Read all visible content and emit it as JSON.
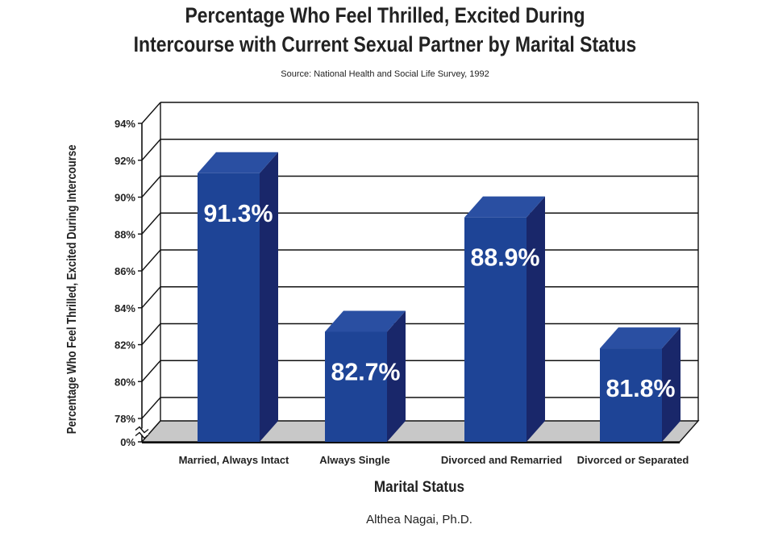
{
  "chart_data": {
    "type": "bar",
    "title_line1": "Percentage Who Feel Thrilled, Excited During",
    "title_line2": "Intercourse with Current Sexual Partner by Marital Status",
    "subtitle": "Source: National Health and Social Life Survey, 1992",
    "ylabel": "Percentage Who Feel Thrilled, Excited During Intercourse",
    "xlabel": "Marital Status",
    "categories": [
      "Married, Always Intact",
      "Always Single",
      "Divorced and Remarried",
      "Divorced or Separated"
    ],
    "values": [
      91.3,
      82.7,
      88.9,
      81.8
    ],
    "value_labels": [
      "91.3%",
      "82.7%",
      "88.9%",
      "81.8%"
    ],
    "yticks": [
      {
        "value": 0,
        "label": "0%"
      },
      {
        "value": 78,
        "label": "78%"
      },
      {
        "value": 80,
        "label": "80%"
      },
      {
        "value": 82,
        "label": "82%"
      },
      {
        "value": 84,
        "label": "84%"
      },
      {
        "value": 86,
        "label": "86%"
      },
      {
        "value": 88,
        "label": "88%"
      },
      {
        "value": 90,
        "label": "90%"
      },
      {
        "value": 92,
        "label": "92%"
      },
      {
        "value": 94,
        "label": "94%"
      }
    ],
    "ylim": [
      78,
      94
    ],
    "axis_break": true,
    "grid": true,
    "legend": "none",
    "colors": {
      "bar_front": "#1e4496",
      "bar_side": "#19276a",
      "bar_top": "#2a4fa2",
      "floor": "#c8c8c8"
    }
  },
  "footer": {
    "author": "Althea Nagai, Ph.D."
  }
}
